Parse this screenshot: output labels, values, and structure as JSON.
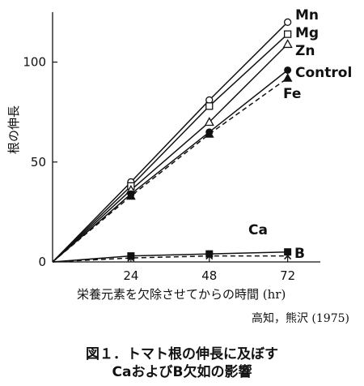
{
  "chart_data": {
    "type": "line",
    "ylabel": "根の伸長",
    "xlabel": "栄養元素を欠除させてからの時間 (hr)",
    "source": "高知，熊沢 (1975)",
    "x": [
      0,
      24,
      48,
      72
    ],
    "x_ticks": [
      "24",
      "48",
      "72"
    ],
    "y_ticks": [
      "0",
      "50",
      "100"
    ],
    "ylim": [
      0,
      125
    ],
    "xlim": [
      0,
      82
    ],
    "grid": false,
    "series": [
      {
        "name": "Mn",
        "values": [
          0,
          40,
          81,
          120
        ],
        "marker": "open-circle",
        "dash": false
      },
      {
        "name": "Mg",
        "values": [
          0,
          38,
          78,
          114
        ],
        "marker": "open-square",
        "dash": false
      },
      {
        "name": "Zn",
        "values": [
          0,
          36,
          70,
          109
        ],
        "marker": "open-triangle",
        "dash": false
      },
      {
        "name": "Control",
        "values": [
          0,
          34,
          65,
          96
        ],
        "marker": "filled-circle",
        "dash": false
      },
      {
        "name": "Fe",
        "values": [
          0,
          33,
          64,
          92
        ],
        "marker": "filled-triangle",
        "dash": true
      },
      {
        "name": "Ca",
        "values": [
          0,
          3,
          4,
          5
        ],
        "marker": "filled-square",
        "dash": false
      },
      {
        "name": "B",
        "values": [
          0,
          2,
          3,
          3
        ],
        "marker": "cross",
        "dash": true
      }
    ]
  },
  "caption": {
    "line1": "図１．トマト根の伸長に及ぼす",
    "line2": "CaおよびB欠如の影響"
  }
}
